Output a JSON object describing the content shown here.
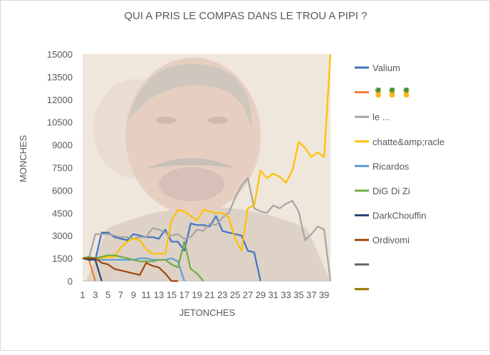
{
  "chart_data": {
    "type": "line",
    "title": "QUI A PRIS LE COMPAS DANS LE TROU A PIPI ?",
    "xlabel": "JETONCHES",
    "ylabel": "MONCHES",
    "ylim": [
      0,
      15000
    ],
    "y_ticks": [
      0,
      1500,
      3000,
      4500,
      6000,
      7500,
      9000,
      10500,
      12000,
      13500,
      15000
    ],
    "x_ticks": [
      1,
      3,
      5,
      7,
      9,
      11,
      13,
      15,
      17,
      19,
      21,
      23,
      25,
      27,
      29,
      31,
      33,
      35,
      37,
      39
    ],
    "xlim": [
      1,
      40
    ],
    "legend_position": "right",
    "grid": false,
    "series": [
      {
        "name": "Valium",
        "color": "#4472c4",
        "x": [
          1,
          2,
          3,
          4,
          5,
          6,
          7,
          8,
          9,
          10,
          11,
          12,
          13,
          14,
          15,
          16,
          17,
          18,
          19,
          20,
          21,
          22,
          23,
          24,
          25,
          26,
          27,
          28,
          29
        ],
        "values": [
          1500,
          1500,
          1400,
          3200,
          3200,
          2900,
          2800,
          2700,
          3100,
          3000,
          2900,
          2900,
          2800,
          3400,
          2600,
          2600,
          2000,
          3800,
          3700,
          3700,
          3600,
          4300,
          3300,
          3200,
          3100,
          3000,
          2000,
          1900,
          0
        ]
      },
      {
        "name": "🍍 🍍 🍍",
        "color": "#ed7d31",
        "x": [
          1,
          2,
          3
        ],
        "values": [
          1500,
          1400,
          0
        ]
      },
      {
        "name": "le ...",
        "color": "#a5a5a5",
        "x": [
          1,
          2,
          3,
          4,
          5,
          6,
          7,
          8,
          9,
          10,
          11,
          12,
          13,
          14,
          15,
          16,
          17,
          18,
          19,
          20,
          21,
          22,
          23,
          24,
          25,
          26,
          27,
          28,
          29,
          30,
          31,
          32,
          33,
          34,
          35,
          36,
          37,
          38,
          39,
          40
        ],
        "values": [
          1500,
          1500,
          3100,
          3100,
          3100,
          3000,
          2900,
          2900,
          2800,
          2900,
          2900,
          3500,
          3400,
          3200,
          3000,
          3100,
          2800,
          2900,
          3400,
          3300,
          3800,
          3700,
          4200,
          4500,
          5500,
          6300,
          6800,
          4800,
          4600,
          4500,
          5000,
          4800,
          5100,
          5300,
          4600,
          2700,
          3100,
          3600,
          3400,
          0
        ]
      },
      {
        "name": "chatte&amp;racle",
        "color": "#ffc000",
        "x": [
          1,
          2,
          3,
          4,
          5,
          6,
          7,
          8,
          9,
          10,
          11,
          12,
          13,
          14,
          15,
          16,
          17,
          18,
          19,
          20,
          21,
          22,
          23,
          24,
          25,
          26,
          27,
          28,
          29,
          30,
          31,
          32,
          33,
          34,
          35,
          36,
          37,
          38,
          39,
          40
        ],
        "values": [
          1500,
          1500,
          1500,
          1500,
          1600,
          1600,
          2200,
          2600,
          2800,
          2700,
          2100,
          1800,
          1800,
          1800,
          4000,
          4700,
          4600,
          4300,
          4000,
          4700,
          4600,
          4500,
          4500,
          4200,
          2800,
          2000,
          4800,
          5000,
          7300,
          6800,
          7100,
          6900,
          6500,
          7300,
          9200,
          8800,
          8200,
          8500,
          8200,
          15000
        ]
      },
      {
        "name": "Ricardos",
        "color": "#5b9bd5",
        "x": [
          1,
          2,
          3,
          4,
          5,
          6,
          7,
          8,
          9,
          10,
          11,
          12,
          13,
          14,
          15,
          16,
          17
        ],
        "values": [
          1500,
          1500,
          1400,
          1400,
          1400,
          1400,
          1400,
          1400,
          1400,
          1500,
          1500,
          1400,
          1400,
          1400,
          1500,
          1300,
          0
        ]
      },
      {
        "name": "DiG Di Zi",
        "color": "#70ad47",
        "x": [
          1,
          2,
          3,
          4,
          5,
          6,
          7,
          8,
          9,
          10,
          11,
          12,
          13,
          14,
          15,
          16,
          17,
          18,
          19,
          20
        ],
        "values": [
          1500,
          1600,
          1500,
          1600,
          1700,
          1700,
          1600,
          1500,
          1400,
          1300,
          1300,
          1300,
          1400,
          1400,
          1100,
          900,
          2600,
          800,
          500,
          0
        ]
      },
      {
        "name": "DarkChouffin",
        "color": "#264478",
        "x": [
          1,
          2,
          3,
          4
        ],
        "values": [
          1500,
          1400,
          1400,
          0
        ]
      },
      {
        "name": "Ordivomi",
        "color": "#9e480e",
        "x": [
          1,
          2,
          3,
          4,
          5,
          6,
          7,
          8,
          9,
          10,
          11,
          12,
          13,
          14,
          15,
          16
        ],
        "values": [
          1500,
          1500,
          1500,
          1200,
          1100,
          800,
          700,
          600,
          500,
          400,
          1200,
          1000,
          900,
          500,
          0,
          0
        ]
      },
      {
        "name": "",
        "color": "#636363",
        "x": [],
        "values": []
      },
      {
        "name": "",
        "color": "#997300",
        "x": [],
        "values": []
      }
    ]
  }
}
